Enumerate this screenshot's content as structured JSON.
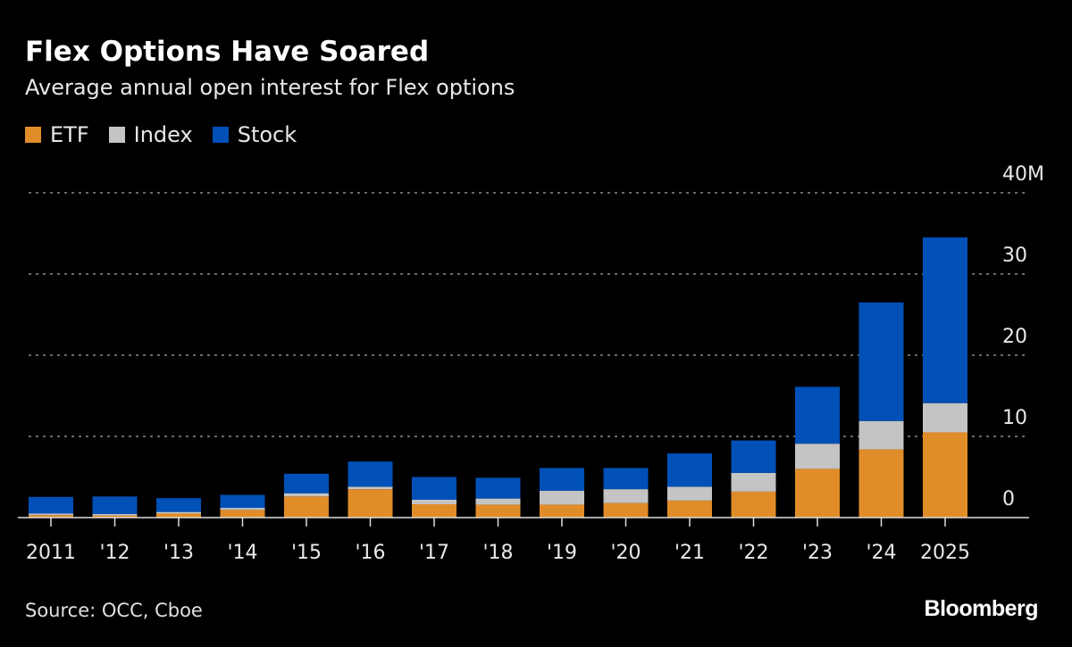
{
  "header": {
    "title": "Flex Options Have Soared",
    "subtitle": "Average annual open interest for Flex options"
  },
  "footer": {
    "source": "Source: OCC, Cboe",
    "logo": "Bloomberg"
  },
  "chart_data": {
    "type": "bar",
    "stacked": true,
    "title": "Flex Options Have Soared",
    "subtitle": "Average annual open interest for Flex options",
    "categories": [
      "2011",
      "'12",
      "'13",
      "'14",
      "'15",
      "'16",
      "'17",
      "'18",
      "'19",
      "'20",
      "'21",
      "'22",
      "'23",
      "'24",
      "2025"
    ],
    "series": [
      {
        "name": "ETF",
        "color": "#e08c28",
        "values": [
          0.3,
          0.25,
          0.5,
          0.95,
          2.6,
          3.5,
          1.65,
          1.6,
          1.6,
          1.8,
          2.1,
          3.2,
          6.0,
          8.4,
          10.5
        ]
      },
      {
        "name": "Index",
        "color": "#c4c4c4",
        "values": [
          0.2,
          0.2,
          0.2,
          0.25,
          0.4,
          0.3,
          0.55,
          0.75,
          1.7,
          1.7,
          1.7,
          2.3,
          3.1,
          3.5,
          3.6
        ]
      },
      {
        "name": "Stock",
        "color": "#0050b8",
        "values": [
          2.05,
          2.15,
          1.7,
          1.6,
          2.4,
          3.1,
          2.8,
          2.55,
          2.8,
          2.6,
          4.1,
          4.0,
          7.0,
          14.6,
          20.4
        ]
      }
    ],
    "ylim": [
      0,
      40
    ],
    "yticks": [
      0,
      10,
      20,
      30,
      40
    ],
    "ytick_labels": [
      "0",
      "10",
      "20",
      "30",
      "40M"
    ],
    "yaxis_position": "right",
    "grid": true,
    "legend_placement": "top-left"
  }
}
